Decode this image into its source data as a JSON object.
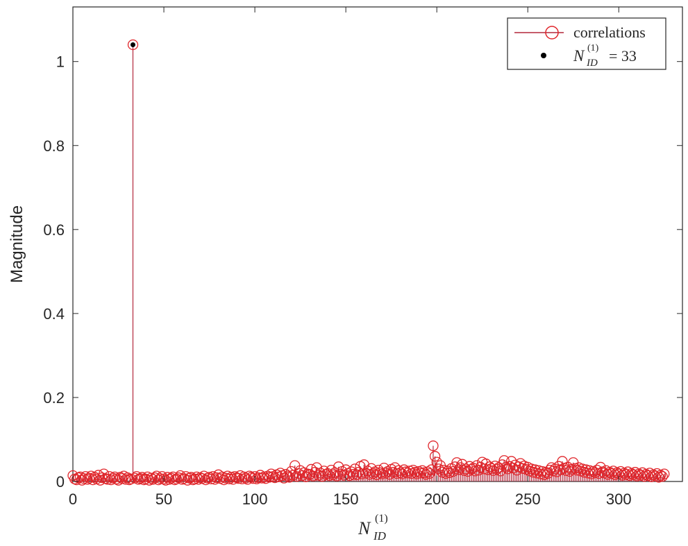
{
  "chart_data": {
    "type": "stem",
    "xlabel": {
      "base": "N",
      "subscript": "ID",
      "superscript": "(1)"
    },
    "ylabel": "Magnitude",
    "xlim": [
      0,
      335
    ],
    "ylim": [
      0,
      1.13
    ],
    "xticks": [
      0,
      50,
      100,
      150,
      200,
      250,
      300
    ],
    "yticks": [
      0,
      0.2,
      0.4,
      0.6,
      0.8,
      1
    ],
    "grid": false,
    "legend_position": "top-right",
    "series": [
      {
        "name": "correlations",
        "marker": "open-circle",
        "color": "#e0262b",
        "line_color": "#b3263a",
        "x_start": 0,
        "x_step": 1,
        "values": [
          0.014,
          0.006,
          0.004,
          0.009,
          0.011,
          0.003,
          0.007,
          0.012,
          0.005,
          0.008,
          0.013,
          0.004,
          0.01,
          0.006,
          0.015,
          0.003,
          0.009,
          0.018,
          0.007,
          0.005,
          0.012,
          0.004,
          0.008,
          0.011,
          0.006,
          0.003,
          0.01,
          0.007,
          0.013,
          0.005,
          0.009,
          0.004,
          0.006,
          1.04,
          0.008,
          0.012,
          0.005,
          0.007,
          0.01,
          0.004,
          0.006,
          0.011,
          0.003,
          0.008,
          0.005,
          0.009,
          0.013,
          0.004,
          0.007,
          0.012,
          0.006,
          0.003,
          0.01,
          0.005,
          0.008,
          0.011,
          0.004,
          0.006,
          0.009,
          0.014,
          0.005,
          0.007,
          0.012,
          0.003,
          0.008,
          0.01,
          0.004,
          0.006,
          0.011,
          0.005,
          0.009,
          0.007,
          0.013,
          0.004,
          0.008,
          0.01,
          0.006,
          0.012,
          0.005,
          0.009,
          0.016,
          0.007,
          0.011,
          0.004,
          0.008,
          0.013,
          0.006,
          0.01,
          0.005,
          0.012,
          0.009,
          0.007,
          0.014,
          0.006,
          0.011,
          0.008,
          0.005,
          0.013,
          0.01,
          0.007,
          0.012,
          0.006,
          0.009,
          0.015,
          0.008,
          0.011,
          0.007,
          0.013,
          0.01,
          0.018,
          0.012,
          0.009,
          0.016,
          0.011,
          0.02,
          0.014,
          0.008,
          0.017,
          0.013,
          0.01,
          0.024,
          0.015,
          0.038,
          0.012,
          0.019,
          0.026,
          0.014,
          0.021,
          0.011,
          0.018,
          0.016,
          0.029,
          0.013,
          0.022,
          0.033,
          0.015,
          0.02,
          0.012,
          0.025,
          0.017,
          0.019,
          0.014,
          0.027,
          0.016,
          0.021,
          0.013,
          0.035,
          0.018,
          0.024,
          0.015,
          0.028,
          0.019,
          0.014,
          0.023,
          0.017,
          0.03,
          0.016,
          0.022,
          0.036,
          0.018,
          0.04,
          0.02,
          0.025,
          0.017,
          0.031,
          0.019,
          0.023,
          0.016,
          0.027,
          0.021,
          0.018,
          0.032,
          0.02,
          0.024,
          0.017,
          0.029,
          0.022,
          0.033,
          0.019,
          0.026,
          0.021,
          0.018,
          0.028,
          0.023,
          0.02,
          0.025,
          0.019,
          0.027,
          0.022,
          0.018,
          0.024,
          0.02,
          0.026,
          0.021,
          0.017,
          0.023,
          0.019,
          0.028,
          0.085,
          0.06,
          0.046,
          0.03,
          0.038,
          0.022,
          0.027,
          0.019,
          0.025,
          0.021,
          0.031,
          0.024,
          0.035,
          0.045,
          0.028,
          0.033,
          0.041,
          0.026,
          0.03,
          0.024,
          0.036,
          0.029,
          0.032,
          0.025,
          0.038,
          0.027,
          0.034,
          0.046,
          0.03,
          0.042,
          0.028,
          0.035,
          0.031,
          0.026,
          0.037,
          0.029,
          0.033,
          0.025,
          0.04,
          0.05,
          0.034,
          0.03,
          0.036,
          0.048,
          0.032,
          0.039,
          0.027,
          0.035,
          0.043,
          0.031,
          0.037,
          0.029,
          0.034,
          0.025,
          0.03,
          0.022,
          0.028,
          0.02,
          0.026,
          0.018,
          0.024,
          0.016,
          0.022,
          0.019,
          0.027,
          0.033,
          0.025,
          0.03,
          0.023,
          0.036,
          0.028,
          0.048,
          0.032,
          0.026,
          0.034,
          0.024,
          0.029,
          0.045,
          0.031,
          0.027,
          0.033,
          0.025,
          0.03,
          0.022,
          0.028,
          0.02,
          0.026,
          0.018,
          0.024,
          0.021,
          0.027,
          0.019,
          0.034,
          0.023,
          0.02,
          0.026,
          0.017,
          0.022,
          0.019,
          0.025,
          0.016,
          0.021,
          0.018,
          0.024,
          0.015,
          0.02,
          0.017,
          0.023,
          0.014,
          0.019,
          0.016,
          0.022,
          0.013,
          0.018,
          0.015,
          0.021,
          0.012,
          0.017,
          0.014,
          0.02,
          0.011,
          0.016,
          0.013,
          0.019,
          0.01,
          0.015,
          0.012,
          0.018
        ]
      },
      {
        "name": "N_ID^(1) = 33",
        "label": {
          "base": "N",
          "subscript": "ID",
          "superscript": "(1)",
          "rhs": "= 33"
        },
        "marker": "dot",
        "color": "#000000",
        "x": [
          33
        ],
        "values": [
          1.04
        ]
      }
    ]
  }
}
